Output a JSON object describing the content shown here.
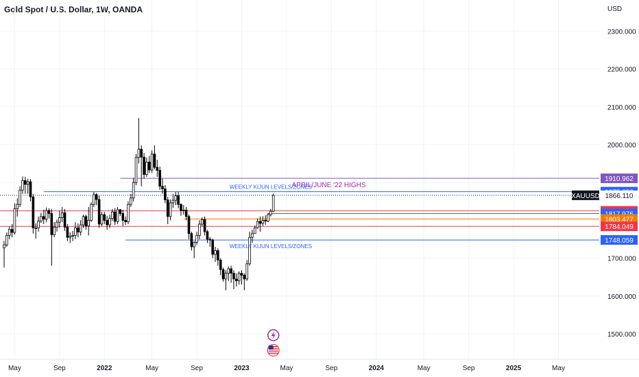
{
  "chart_data": {
    "type": "candlestick",
    "title": "Gold Spot / U.S. Dollar, 1W, OANDA",
    "currency": "USD",
    "y_range": [
      1450,
      2360
    ],
    "y_ticks": [
      {
        "value": 2300,
        "label": "2300.000"
      },
      {
        "value": 2200,
        "label": "2200.000"
      },
      {
        "value": 2100,
        "label": "2100.000"
      },
      {
        "value": 2000,
        "label": "2000.000"
      },
      {
        "value": 1700,
        "label": "1700.000"
      },
      {
        "value": 1600,
        "label": "1600.000"
      },
      {
        "value": 1500,
        "label": "1500.000"
      }
    ],
    "x_ticks": [
      {
        "label": "May",
        "bar": 4
      },
      {
        "label": "Sep",
        "bar": 21
      },
      {
        "label": "2022",
        "bar": 38
      },
      {
        "label": "May",
        "bar": 56
      },
      {
        "label": "Sep",
        "bar": 73
      },
      {
        "label": "2023",
        "bar": 90
      },
      {
        "label": "May",
        "bar": 107
      },
      {
        "label": "Sep",
        "bar": 124
      },
      {
        "label": "2024",
        "bar": 141
      },
      {
        "label": "May",
        "bar": 159
      },
      {
        "label": "Sep",
        "bar": 176
      },
      {
        "label": "2025",
        "bar": 193
      },
      {
        "label": "May",
        "bar": 210
      }
    ],
    "bar_count": 228,
    "candles": [
      [
        1727,
        1735,
        1675,
        1746
      ],
      [
        1735,
        1760,
        1730,
        1768
      ],
      [
        1760,
        1776,
        1750,
        1784
      ],
      [
        1776,
        1768,
        1755,
        1790
      ],
      [
        1768,
        1831,
        1762,
        1845
      ],
      [
        1831,
        1842,
        1810,
        1858
      ],
      [
        1842,
        1880,
        1835,
        1890
      ],
      [
        1880,
        1905,
        1870,
        1916
      ],
      [
        1905,
        1895,
        1870,
        1915
      ],
      [
        1895,
        1902,
        1870,
        1910
      ],
      [
        1902,
        1862,
        1850,
        1909
      ],
      [
        1862,
        1780,
        1765,
        1870
      ],
      [
        1780,
        1780,
        1752,
        1792
      ],
      [
        1780,
        1798,
        1770,
        1810
      ],
      [
        1798,
        1810,
        1793,
        1820
      ],
      [
        1810,
        1803,
        1790,
        1828
      ],
      [
        1803,
        1826,
        1795,
        1834
      ],
      [
        1826,
        1818,
        1805,
        1832
      ],
      [
        1818,
        1762,
        1680,
        1830
      ],
      [
        1762,
        1782,
        1755,
        1795
      ],
      [
        1782,
        1795,
        1770,
        1802
      ],
      [
        1795,
        1807,
        1780,
        1825
      ],
      [
        1807,
        1820,
        1795,
        1835
      ],
      [
        1820,
        1782,
        1772,
        1830
      ],
      [
        1782,
        1755,
        1745,
        1790
      ],
      [
        1755,
        1758,
        1740,
        1768
      ],
      [
        1758,
        1760,
        1745,
        1772
      ],
      [
        1760,
        1780,
        1750,
        1795
      ],
      [
        1780,
        1769,
        1755,
        1792
      ],
      [
        1769,
        1788,
        1760,
        1800
      ],
      [
        1788,
        1810,
        1780,
        1815
      ],
      [
        1810,
        1785,
        1775,
        1815
      ],
      [
        1785,
        1800,
        1760,
        1835
      ],
      [
        1800,
        1842,
        1795,
        1848
      ],
      [
        1842,
        1868,
        1835,
        1875
      ],
      [
        1868,
        1855,
        1840,
        1872
      ],
      [
        1855,
        1790,
        1780,
        1865
      ],
      [
        1790,
        1815,
        1785,
        1822
      ],
      [
        1815,
        1800,
        1790,
        1822
      ],
      [
        1800,
        1788,
        1775,
        1812
      ],
      [
        1788,
        1805,
        1780,
        1815
      ],
      [
        1805,
        1822,
        1798,
        1830
      ],
      [
        1822,
        1797,
        1788,
        1832
      ],
      [
        1797,
        1828,
        1790,
        1835
      ],
      [
        1828,
        1818,
        1812,
        1830
      ],
      [
        1818,
        1800,
        1785,
        1828
      ],
      [
        1800,
        1796,
        1788,
        1810
      ],
      [
        1796,
        1842,
        1790,
        1850
      ],
      [
        1842,
        1859,
        1835,
        1870
      ],
      [
        1859,
        1900,
        1850,
        1912
      ],
      [
        1900,
        1966,
        1893,
        1975
      ],
      [
        1966,
        1988,
        1950,
        2070
      ],
      [
        1988,
        1967,
        1890,
        1998
      ],
      [
        1967,
        1921,
        1910,
        1978
      ],
      [
        1921,
        1954,
        1915,
        1966
      ],
      [
        1954,
        1933,
        1925,
        1970
      ],
      [
        1933,
        1975,
        1925,
        1985
      ],
      [
        1975,
        1940,
        1935,
        1998
      ],
      [
        1940,
        1932,
        1915,
        1960
      ],
      [
        1932,
        1890,
        1880,
        1942
      ],
      [
        1890,
        1883,
        1870,
        1910
      ],
      [
        1883,
        1854,
        1845,
        1893
      ],
      [
        1854,
        1810,
        1790,
        1862
      ],
      [
        1810,
        1846,
        1800,
        1855
      ],
      [
        1846,
        1853,
        1833,
        1870
      ],
      [
        1853,
        1865,
        1840,
        1875
      ],
      [
        1865,
        1842,
        1832,
        1875
      ],
      [
        1842,
        1826,
        1812,
        1845
      ],
      [
        1826,
        1827,
        1815,
        1840
      ],
      [
        1827,
        1810,
        1800,
        1835
      ],
      [
        1810,
        1765,
        1750,
        1815
      ],
      [
        1765,
        1730,
        1720,
        1770
      ],
      [
        1730,
        1742,
        1700,
        1745
      ],
      [
        1742,
        1760,
        1735,
        1770
      ],
      [
        1760,
        1790,
        1750,
        1800
      ],
      [
        1790,
        1802,
        1785,
        1808
      ],
      [
        1802,
        1770,
        1760,
        1810
      ],
      [
        1770,
        1750,
        1740,
        1775
      ],
      [
        1750,
        1748,
        1730,
        1756
      ],
      [
        1748,
        1710,
        1700,
        1752
      ],
      [
        1710,
        1720,
        1690,
        1730
      ],
      [
        1720,
        1695,
        1680,
        1726
      ],
      [
        1695,
        1670,
        1655,
        1700
      ],
      [
        1670,
        1645,
        1638,
        1675
      ],
      [
        1645,
        1660,
        1615,
        1668
      ],
      [
        1660,
        1672,
        1640,
        1678
      ],
      [
        1672,
        1660,
        1635,
        1680
      ],
      [
        1660,
        1645,
        1618,
        1668
      ],
      [
        1645,
        1640,
        1625,
        1660
      ],
      [
        1640,
        1660,
        1630,
        1665
      ],
      [
        1660,
        1655,
        1630,
        1668
      ],
      [
        1655,
        1645,
        1615,
        1660
      ],
      [
        1645,
        1685,
        1640,
        1695
      ],
      [
        1685,
        1755,
        1680,
        1770
      ],
      [
        1755,
        1765,
        1740,
        1775
      ],
      [
        1765,
        1780,
        1765,
        1786
      ],
      [
        1780,
        1797,
        1778,
        1805
      ],
      [
        1797,
        1792,
        1770,
        1810
      ],
      [
        1792,
        1800,
        1785,
        1811
      ],
      [
        1800,
        1798,
        1788,
        1813
      ],
      [
        1798,
        1815,
        1795,
        1820
      ],
      [
        1815,
        1824,
        1810,
        1830
      ],
      [
        1824,
        1866,
        1822,
        1870
      ]
    ],
    "levels": [
      {
        "value": 1910.962,
        "label": "1910.962",
        "color": "#7e57c2"
      },
      {
        "value": 1875.658,
        "label": "1875.658",
        "color": "#2962ff"
      },
      {
        "value": 1866.11,
        "label": "1866.110",
        "color": "#131722",
        "name": "XAUUSD"
      },
      {
        "value": 1824.946,
        "label": "1824.946",
        "color": "#f23645"
      },
      {
        "value": 1817.976,
        "label": "1817.976",
        "color": "#2962ff"
      },
      {
        "value": 1803.477,
        "label": "1803.477",
        "color": "#f57c00"
      },
      {
        "value": 1784.049,
        "label": "1784.049",
        "color": "#f23645"
      },
      {
        "value": 1748.059,
        "label": "1748.059",
        "color": "#2962ff"
      }
    ],
    "annotations": [
      {
        "text": "APRIL/JUNE '22 HIGHS",
        "color": "#9c27b0"
      },
      {
        "text": "WEEKLY KIJUN LEVELS/ZONES",
        "color": "#2962ff"
      },
      {
        "text": "WEEKLY KIJUN LEVELS/ZONES",
        "color": "#2962ff"
      }
    ],
    "colors": {
      "up": "#ffffff",
      "down": "#000000",
      "wick": "#000000",
      "grid": "#f0f3fa",
      "axis_text": "#131722"
    }
  }
}
